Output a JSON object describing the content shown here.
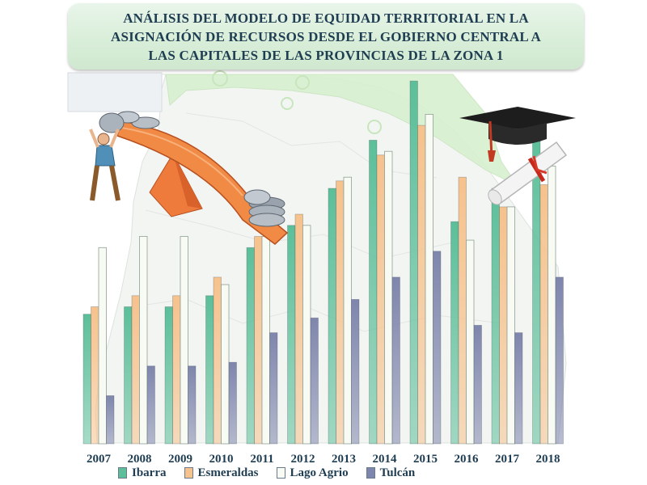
{
  "title": {
    "lines": [
      "ANÁLISIS DEL MODELO DE EQUIDAD TERRITORIAL EN LA",
      "ASIGNACIÓN DE RECURSOS DESDE EL GOBIERNO CENTRAL A",
      "LAS CAPITALES DE LAS PROVINCIAS DE LA ZONA 1"
    ]
  },
  "colors": {
    "ibarra": "#5cbf9a",
    "esmeraldas": "#f6c28d",
    "lago_agrio": "#f7fbf3",
    "tulcan": "#7f86ad",
    "title_text": "#1f3d52",
    "map_green": "#d8f0cf"
  },
  "icons": [
    "seesaw-coins-icon",
    "graduation-cap-icon",
    "diploma-icon"
  ],
  "legend_position": "bottom",
  "chart_data": {
    "type": "bar",
    "title": "ANÁLISIS DEL MODELO DE EQUIDAD TERRITORIAL EN LA ASIGNACIÓN DE RECURSOS DESDE EL GOBIERNO CENTRAL A LAS CAPITALES DE LAS PROVINCIAS DE LA ZONA 1",
    "categories": [
      "2007",
      "2008",
      "2009",
      "2010",
      "2011",
      "2012",
      "2013",
      "2014",
      "2015",
      "2016",
      "2017",
      "2018"
    ],
    "series": [
      {
        "name": "Ibarra",
        "values": [
          35,
          37,
          37,
          40,
          53,
          59,
          69,
          82,
          98,
          60,
          69,
          84
        ]
      },
      {
        "name": "Esmeraldas",
        "values": [
          37,
          40,
          40,
          45,
          56,
          62,
          71,
          78,
          86,
          72,
          64,
          70
        ]
      },
      {
        "name": "Lago Agrio",
        "values": [
          53,
          56,
          56,
          43,
          56,
          59,
          72,
          79,
          89,
          55,
          64,
          75
        ]
      },
      {
        "name": "Tulcán",
        "values": [
          13,
          21,
          21,
          22,
          30,
          34,
          39,
          45,
          52,
          32,
          30,
          45
        ]
      }
    ],
    "ylim": [
      0,
      100
    ],
    "xlabel": "",
    "ylabel": "",
    "grid": false,
    "legend": "bottom"
  }
}
